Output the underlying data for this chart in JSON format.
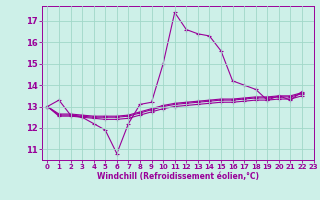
{
  "title": "",
  "xlabel": "Windchill (Refroidissement éolien,°C)",
  "ylabel": "",
  "background_color": "#cdf0e8",
  "grid_color": "#a0d8c8",
  "line_color": "#990099",
  "xlim": [
    -0.5,
    23
  ],
  "ylim": [
    10.5,
    17.7
  ],
  "yticks": [
    11,
    12,
    13,
    14,
    15,
    16,
    17
  ],
  "xticks": [
    0,
    1,
    2,
    3,
    4,
    5,
    6,
    7,
    8,
    9,
    10,
    11,
    12,
    13,
    14,
    15,
    16,
    17,
    18,
    19,
    20,
    21,
    22,
    23
  ],
  "series": [
    {
      "x": [
        0,
        1,
        2,
        3,
        4,
        5,
        6,
        7,
        8,
        9,
        10,
        11,
        12,
        13,
        14,
        15,
        16,
        17,
        18,
        19,
        20,
        21,
        22
      ],
      "y": [
        13.0,
        13.3,
        12.6,
        12.5,
        12.2,
        11.9,
        10.8,
        12.2,
        13.1,
        13.2,
        15.0,
        17.4,
        16.6,
        16.4,
        16.3,
        15.6,
        14.2,
        14.0,
        13.8,
        13.3,
        13.5,
        13.3,
        13.7
      ]
    },
    {
      "x": [
        0,
        1,
        2,
        3,
        4,
        5,
        6,
        7,
        8,
        9,
        10,
        11,
        12,
        13,
        14,
        15,
        16,
        17,
        18,
        19,
        20,
        21,
        22
      ],
      "y": [
        13.0,
        12.55,
        12.55,
        12.5,
        12.45,
        12.4,
        12.4,
        12.45,
        12.6,
        12.75,
        12.9,
        13.0,
        13.05,
        13.1,
        13.15,
        13.2,
        13.2,
        13.25,
        13.3,
        13.3,
        13.35,
        13.35,
        13.5
      ]
    },
    {
      "x": [
        0,
        1,
        2,
        3,
        4,
        5,
        6,
        7,
        8,
        9,
        10,
        11,
        12,
        13,
        14,
        15,
        16,
        17,
        18,
        19,
        20,
        21,
        22
      ],
      "y": [
        13.0,
        12.6,
        12.6,
        12.55,
        12.5,
        12.5,
        12.5,
        12.55,
        12.7,
        12.85,
        13.0,
        13.1,
        13.15,
        13.2,
        13.25,
        13.3,
        13.3,
        13.35,
        13.4,
        13.4,
        13.45,
        13.45,
        13.6
      ]
    },
    {
      "x": [
        0,
        1,
        2,
        3,
        4,
        5,
        6,
        7,
        8,
        9,
        10,
        11,
        12,
        13,
        14,
        15,
        16,
        17,
        18,
        19,
        20,
        21,
        22
      ],
      "y": [
        13.0,
        12.65,
        12.65,
        12.6,
        12.55,
        12.55,
        12.55,
        12.6,
        12.75,
        12.9,
        13.05,
        13.15,
        13.2,
        13.25,
        13.3,
        13.35,
        13.35,
        13.4,
        13.45,
        13.45,
        13.5,
        13.5,
        13.65
      ]
    }
  ]
}
